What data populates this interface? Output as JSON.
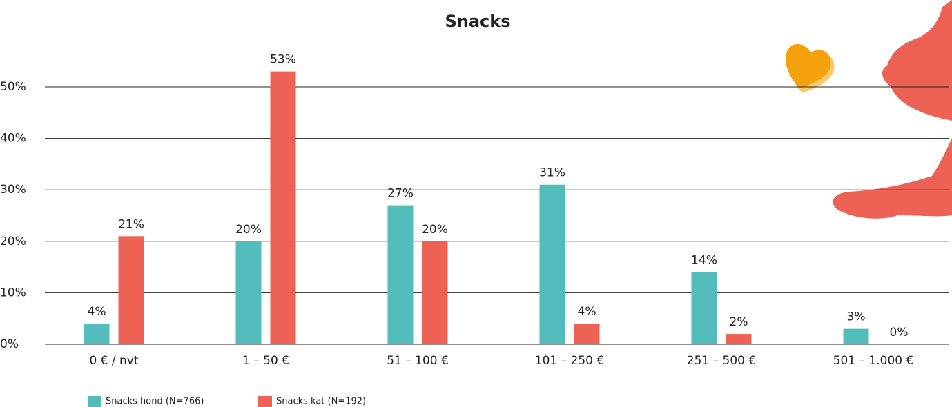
{
  "chart_data": {
    "type": "bar",
    "title": "Snacks",
    "categories": [
      "0 € / nvt",
      "1 – 50 €",
      "51 – 100 €",
      "101 – 250 €",
      "251 – 500 €",
      "501 – 1.000 €"
    ],
    "series": [
      {
        "name": "Snacks hond (N=766)",
        "color": "#52bdbb",
        "values": [
          4,
          20,
          27,
          31,
          14,
          3
        ],
        "value_labels": [
          "4%",
          "20%",
          "27%",
          "31%",
          "14%",
          "3%"
        ]
      },
      {
        "name": "Snacks kat (N=192)",
        "color": "#ee6255",
        "values": [
          21,
          53,
          20,
          4,
          2,
          0
        ],
        "value_labels": [
          "21%",
          "53%",
          "20%",
          "4%",
          "2%",
          "0%"
        ]
      }
    ],
    "ylim": [
      0,
      55
    ],
    "yticks": [
      {
        "value": 0,
        "label": "0%"
      },
      {
        "value": 10,
        "label": "10%"
      },
      {
        "value": 20,
        "label": "20%"
      },
      {
        "value": 30,
        "label": "30%"
      },
      {
        "value": 40,
        "label": "40%"
      },
      {
        "value": 50,
        "label": "50%"
      }
    ],
    "grid": true
  }
}
